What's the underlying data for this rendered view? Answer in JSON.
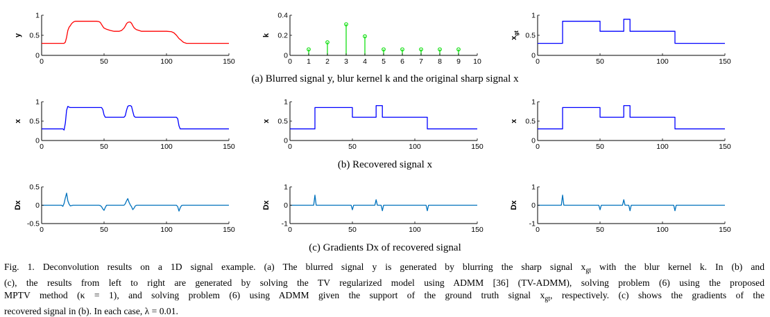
{
  "captions": {
    "a": "(a) Blurred signal y, blur kernel k and the original sharp signal x",
    "b": "(b) Recovered signal x",
    "c": "(c) Gradients Dx of recovered signal"
  },
  "figure_caption_lines": [
    "Fig. 1.  Deconvolution results on a 1D signal example. (a) The blurred signal y is generated by blurring the sharp signal x",
    "(c), the results from left to right are generated by solving the TV regularized model using ADMM [36] (TV-ADMM), solving problem (6) using the proposed",
    "MPTV method (κ = 1), and solving problem (6) using ADMM given the support of the ground truth signal x",
    "recovered signal in (b). In each case, λ = 0.01."
  ],
  "figure_caption_parts": {
    "l1_sub": "gt",
    "l1_tail": " with the blur kernel k. In (b) and",
    "l3_sub": "gt",
    "l3_tail": ", respectively. (c) shows the gradients of the"
  },
  "chart_data": [
    {
      "type": "line",
      "row": "a",
      "col": 0,
      "ylabel": "y",
      "color": "#ff0000",
      "xlim": [
        0,
        150
      ],
      "ylim": [
        0,
        1
      ],
      "yticks": [
        0,
        0.5,
        1
      ],
      "yticklabels": [
        "0",
        "0.5",
        "1"
      ],
      "xticks": [
        0,
        50,
        100,
        150
      ],
      "x": [
        0,
        18,
        19,
        20,
        21,
        22,
        23,
        24,
        25,
        26,
        27,
        28,
        30,
        35,
        40,
        44,
        46,
        47,
        48,
        49,
        50,
        52,
        55,
        58,
        62,
        64,
        66,
        67,
        68,
        69,
        70,
        71,
        72,
        73,
        74,
        75,
        76,
        78,
        80,
        85,
        90,
        100,
        104,
        106,
        108,
        110,
        112,
        113,
        114,
        115,
        116,
        150
      ],
      "values": [
        0.3,
        0.3,
        0.33,
        0.45,
        0.62,
        0.7,
        0.74,
        0.79,
        0.82,
        0.84,
        0.85,
        0.85,
        0.85,
        0.85,
        0.85,
        0.85,
        0.84,
        0.82,
        0.77,
        0.72,
        0.68,
        0.65,
        0.62,
        0.6,
        0.6,
        0.62,
        0.68,
        0.73,
        0.79,
        0.82,
        0.83,
        0.83,
        0.8,
        0.74,
        0.69,
        0.66,
        0.64,
        0.62,
        0.6,
        0.6,
        0.6,
        0.6,
        0.59,
        0.56,
        0.5,
        0.42,
        0.37,
        0.34,
        0.32,
        0.31,
        0.3,
        0.3
      ]
    },
    {
      "type": "stem",
      "row": "a",
      "col": 1,
      "ylabel": "k",
      "color": "#00dd00",
      "xlim": [
        0,
        10
      ],
      "ylim": [
        0,
        0.4
      ],
      "yticks": [
        0,
        0.2,
        0.4
      ],
      "yticklabels": [
        "0",
        "0.2",
        "0.4"
      ],
      "xticks": [
        0,
        1,
        2,
        3,
        4,
        5,
        6,
        7,
        8,
        9,
        10
      ],
      "x": [
        1,
        2,
        3,
        4,
        5,
        6,
        7,
        8,
        9
      ],
      "values": [
        0.06,
        0.13,
        0.31,
        0.19,
        0.06,
        0.06,
        0.06,
        0.06,
        0.06
      ]
    },
    {
      "type": "line",
      "row": "a",
      "col": 2,
      "ylabel": "x",
      "ylabel_sub": "gt",
      "color": "#0000ff",
      "xlim": [
        0,
        150
      ],
      "ylim": [
        0,
        1
      ],
      "yticks": [
        0,
        0.5,
        1
      ],
      "yticklabels": [
        "0",
        "0.5",
        "1"
      ],
      "xticks": [
        0,
        50,
        100,
        150
      ],
      "x": [
        0,
        20,
        20,
        50,
        50,
        69,
        69,
        74,
        74,
        110,
        110,
        150
      ],
      "values": [
        0.3,
        0.3,
        0.85,
        0.85,
        0.6,
        0.6,
        0.9,
        0.9,
        0.6,
        0.6,
        0.3,
        0.3
      ]
    },
    {
      "type": "line",
      "row": "b",
      "col": 0,
      "ylabel": "x",
      "color": "#0000ff",
      "xlim": [
        0,
        150
      ],
      "ylim": [
        0,
        1
      ],
      "yticks": [
        0,
        0.5,
        1
      ],
      "yticklabels": [
        "0",
        "0.5",
        "1"
      ],
      "xticks": [
        0,
        50,
        100,
        150
      ],
      "x": [
        0,
        17,
        18,
        19,
        20,
        21,
        22,
        23,
        24,
        26,
        46,
        48,
        49,
        50,
        51,
        53,
        66,
        67,
        68,
        69,
        70,
        71,
        72,
        73,
        74,
        75,
        77,
        108,
        109,
        110,
        111,
        112,
        113,
        150
      ],
      "values": [
        0.3,
        0.3,
        0.27,
        0.45,
        0.78,
        0.88,
        0.86,
        0.85,
        0.85,
        0.85,
        0.85,
        0.85,
        0.8,
        0.66,
        0.6,
        0.6,
        0.6,
        0.64,
        0.78,
        0.88,
        0.9,
        0.9,
        0.88,
        0.75,
        0.63,
        0.6,
        0.6,
        0.6,
        0.56,
        0.38,
        0.3,
        0.3,
        0.3,
        0.3
      ]
    },
    {
      "type": "line",
      "row": "b",
      "col": 1,
      "ylabel": "x",
      "color": "#0000ff",
      "xlim": [
        0,
        150
      ],
      "ylim": [
        0,
        1
      ],
      "yticks": [
        0,
        0.5,
        1
      ],
      "yticklabels": [
        "0",
        "0.5",
        "1"
      ],
      "xticks": [
        0,
        50,
        100,
        150
      ],
      "x": [
        0,
        20,
        20,
        50,
        50,
        69,
        69,
        74,
        74,
        110,
        110,
        150
      ],
      "values": [
        0.3,
        0.3,
        0.85,
        0.85,
        0.6,
        0.6,
        0.9,
        0.9,
        0.6,
        0.6,
        0.3,
        0.3
      ]
    },
    {
      "type": "line",
      "row": "b",
      "col": 2,
      "ylabel": "x",
      "color": "#0000ff",
      "xlim": [
        0,
        150
      ],
      "ylim": [
        0,
        1
      ],
      "yticks": [
        0,
        0.5,
        1
      ],
      "yticklabels": [
        "0",
        "0.5",
        "1"
      ],
      "xticks": [
        0,
        50,
        100,
        150
      ],
      "x": [
        0,
        20,
        20,
        50,
        50,
        69,
        69,
        74,
        74,
        110,
        110,
        150
      ],
      "values": [
        0.3,
        0.3,
        0.85,
        0.85,
        0.6,
        0.6,
        0.9,
        0.9,
        0.6,
        0.6,
        0.3,
        0.3
      ]
    },
    {
      "type": "line",
      "row": "c",
      "col": 0,
      "ylabel": "Dx",
      "color": "#0072bd",
      "xlim": [
        0,
        150
      ],
      "ylim": [
        -0.5,
        0.5
      ],
      "yticks": [
        -0.5,
        0,
        0.5
      ],
      "yticklabels": [
        "-0.5",
        "0",
        "0.5"
      ],
      "xticks": [
        0,
        50,
        100,
        150
      ],
      "x": [
        0,
        16,
        17,
        18,
        19,
        20,
        21,
        22,
        23,
        24,
        25,
        46,
        47,
        48,
        49,
        50,
        51,
        52,
        66,
        67,
        68,
        69,
        70,
        71,
        72,
        73,
        74,
        75,
        76,
        108,
        109,
        110,
        111,
        112,
        113,
        150
      ],
      "values": [
        0,
        0,
        -0.03,
        0.05,
        0.2,
        0.33,
        0.12,
        0.03,
        -0.02,
        -0.01,
        0,
        0,
        -0.01,
        -0.04,
        -0.1,
        -0.14,
        -0.06,
        0,
        0,
        0.04,
        0.12,
        0.18,
        0.08,
        0.01,
        -0.04,
        -0.12,
        -0.08,
        -0.02,
        0,
        0,
        -0.04,
        -0.16,
        -0.07,
        -0.01,
        0,
        0
      ]
    },
    {
      "type": "line",
      "row": "c",
      "col": 1,
      "ylabel": "Dx",
      "color": "#0072bd",
      "xlim": [
        0,
        150
      ],
      "ylim": [
        -1,
        1
      ],
      "yticks": [
        -1,
        0,
        1
      ],
      "yticklabels": [
        "-1",
        "0",
        "1"
      ],
      "xticks": [
        0,
        50,
        100,
        150
      ],
      "x": [
        0,
        19,
        20,
        21,
        49,
        50,
        51,
        68,
        69,
        70,
        73,
        74,
        75,
        109,
        110,
        111,
        150
      ],
      "values": [
        0,
        0,
        0.55,
        0,
        0,
        -0.25,
        0,
        0,
        0.3,
        0,
        0,
        -0.3,
        0,
        0,
        -0.3,
        0,
        0
      ]
    },
    {
      "type": "line",
      "row": "c",
      "col": 2,
      "ylabel": "Dx",
      "color": "#0072bd",
      "xlim": [
        0,
        150
      ],
      "ylim": [
        -1,
        1
      ],
      "yticks": [
        -1,
        0,
        1
      ],
      "yticklabels": [
        "-1",
        "0",
        "1"
      ],
      "xticks": [
        0,
        50,
        100,
        150
      ],
      "x": [
        0,
        19,
        20,
        21,
        49,
        50,
        51,
        68,
        69,
        70,
        73,
        74,
        75,
        109,
        110,
        111,
        150
      ],
      "values": [
        0,
        0,
        0.55,
        0,
        0,
        -0.25,
        0,
        0,
        0.3,
        0,
        0,
        -0.3,
        0,
        0,
        -0.3,
        0,
        0
      ]
    }
  ]
}
